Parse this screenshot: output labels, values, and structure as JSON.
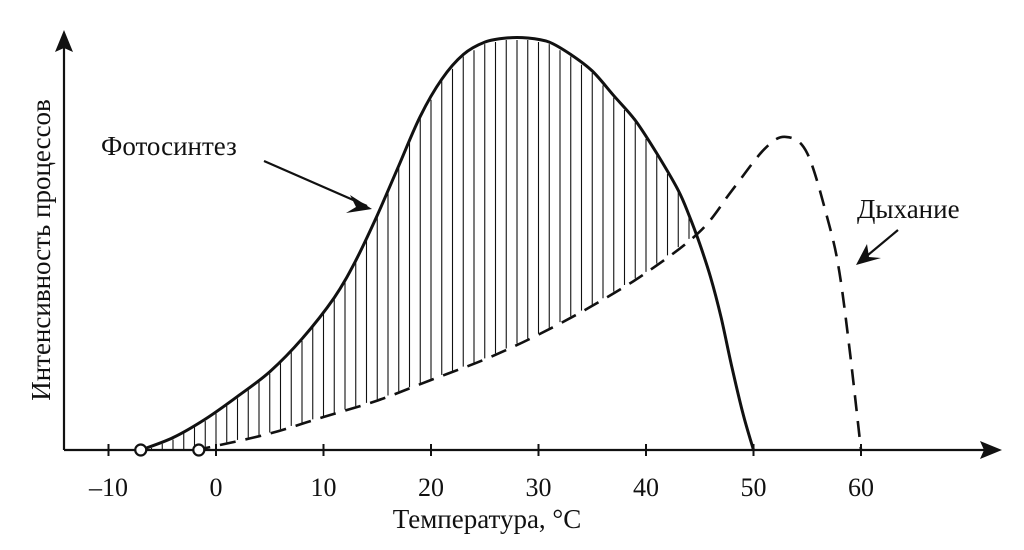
{
  "chart_data": {
    "type": "line",
    "title": "",
    "xlabel": "Температура, °С",
    "ylabel": "Интенсивность процессов",
    "xlim": [
      -15,
      73
    ],
    "ylim": [
      0,
      1.03
    ],
    "x_ticks": [
      -10,
      0,
      10,
      20,
      30,
      40,
      50,
      60
    ],
    "x_tick_labels": [
      "–10",
      "0",
      "10",
      "20",
      "30",
      "40",
      "50",
      "60"
    ],
    "grid": false,
    "legend": "none",
    "series": [
      {
        "name": "Фотосинтез",
        "style": "solid",
        "x": [
          -7,
          -4,
          -1,
          2,
          5,
          8,
          11,
          13,
          15,
          17,
          19,
          21,
          23,
          25,
          27,
          29,
          31,
          33,
          35,
          37,
          39,
          41,
          43,
          44,
          45,
          46,
          47,
          48,
          49,
          50
        ],
        "y": [
          0,
          0.03,
          0.075,
          0.13,
          0.19,
          0.27,
          0.37,
          0.46,
          0.57,
          0.69,
          0.81,
          0.9,
          0.96,
          0.99,
          1.0,
          1.0,
          0.99,
          0.96,
          0.92,
          0.86,
          0.8,
          0.72,
          0.63,
          0.57,
          0.5,
          0.42,
          0.32,
          0.2,
          0.09,
          0.0
        ]
      },
      {
        "name": "Дыхание",
        "style": "dashed",
        "x": [
          -2,
          0,
          5,
          10,
          15,
          20,
          25,
          30,
          35,
          40,
          45,
          48,
          51,
          53,
          55,
          57,
          58,
          59,
          60
        ],
        "y": [
          0,
          0.01,
          0.04,
          0.08,
          0.12,
          0.17,
          0.22,
          0.28,
          0.35,
          0.43,
          0.53,
          0.63,
          0.73,
          0.76,
          0.72,
          0.55,
          0.43,
          0.23,
          0.0
        ]
      }
    ],
    "shaded_region": {
      "between": [
        "Фотосинтез",
        "Дыхание"
      ],
      "x_range": [
        -7,
        46
      ],
      "pattern": "vertical hatching"
    },
    "point_markers": [
      {
        "x": -7,
        "y": 0
      },
      {
        "x": -1.6,
        "y": 0
      }
    ],
    "annotations": [
      {
        "text": "Фотосинтез",
        "points_to_series": "Фотосинтез"
      },
      {
        "text": "Дыхание",
        "points_to_series": "Дыхание"
      }
    ]
  }
}
